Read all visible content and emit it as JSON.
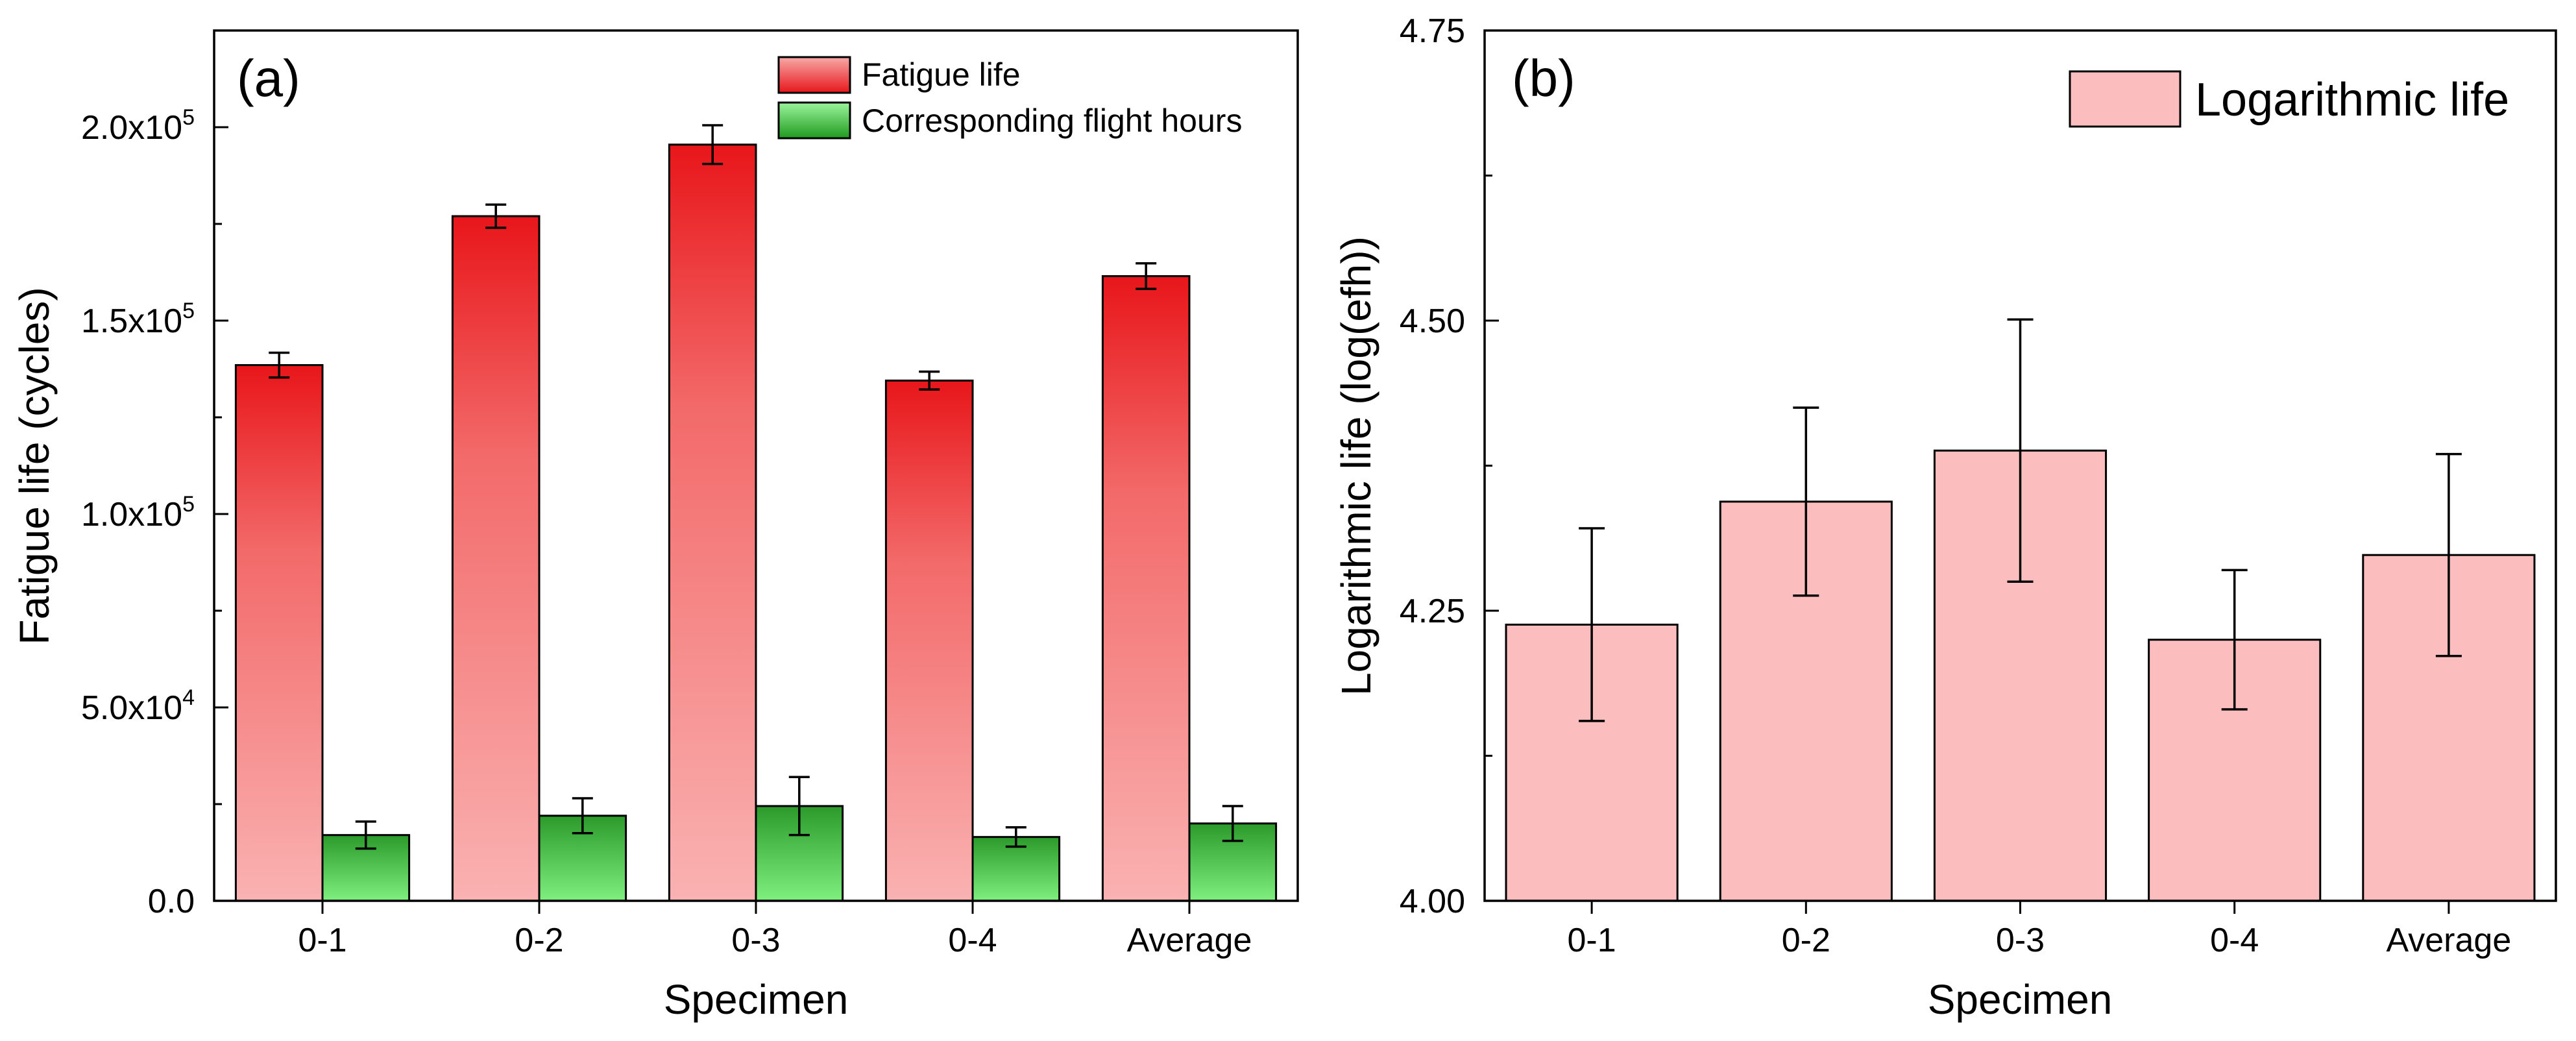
{
  "chart_data": [
    {
      "type": "bar",
      "panel_label": "(a)",
      "xlabel": "Specimen",
      "ylabel": "Fatigue life (cycles)",
      "categories": [
        "0-1",
        "0-2",
        "0-3",
        "0-4",
        "Average"
      ],
      "ylim": [
        0,
        225000
      ],
      "yticks": [
        {
          "value": 0,
          "label": "0.0",
          "exp": ""
        },
        {
          "value": 50000,
          "label": "5.0x10",
          "exp": "4"
        },
        {
          "value": 100000,
          "label": "1.0x10",
          "exp": "5"
        },
        {
          "value": 150000,
          "label": "1.5x10",
          "exp": "5"
        },
        {
          "value": 200000,
          "label": "2.0x10",
          "exp": "5"
        }
      ],
      "series": [
        {
          "name": "Fatigue life",
          "color_top": "#e8161a",
          "color_bottom": "#fab2b2",
          "values": [
            138500,
            177000,
            195500,
            134500,
            161500
          ],
          "errors": [
            3200,
            3000,
            5000,
            2300,
            3300
          ]
        },
        {
          "name": "Corresponding flight hours",
          "color_top": "#2b9a2b",
          "color_bottom": "#7ef07e",
          "values": [
            17000,
            22000,
            24500,
            16500,
            20000
          ],
          "errors": [
            3500,
            4500,
            7500,
            2500,
            4500
          ]
        }
      ],
      "legend_position": "top-right"
    },
    {
      "type": "bar",
      "panel_label": "(b)",
      "xlabel": "Specimen",
      "ylabel": "Logarithmic life  (log(efh))",
      "categories": [
        "0-1",
        "0-2",
        "0-3",
        "0-4",
        "Average"
      ],
      "ylim": [
        4.0,
        4.75
      ],
      "yticks": [
        {
          "value": 4.0,
          "label": "4.00"
        },
        {
          "value": 4.25,
          "label": "4.25"
        },
        {
          "value": 4.5,
          "label": "4.50"
        },
        {
          "value": 4.75,
          "label": "4.75"
        }
      ],
      "series": [
        {
          "name": "Logarithmic life",
          "color": "#fbbdbd",
          "values": [
            4.238,
            4.344,
            4.388,
            4.225,
            4.298
          ],
          "errors": [
            0.083,
            0.081,
            0.113,
            0.06,
            0.087
          ]
        }
      ],
      "legend_position": "top-right"
    }
  ]
}
